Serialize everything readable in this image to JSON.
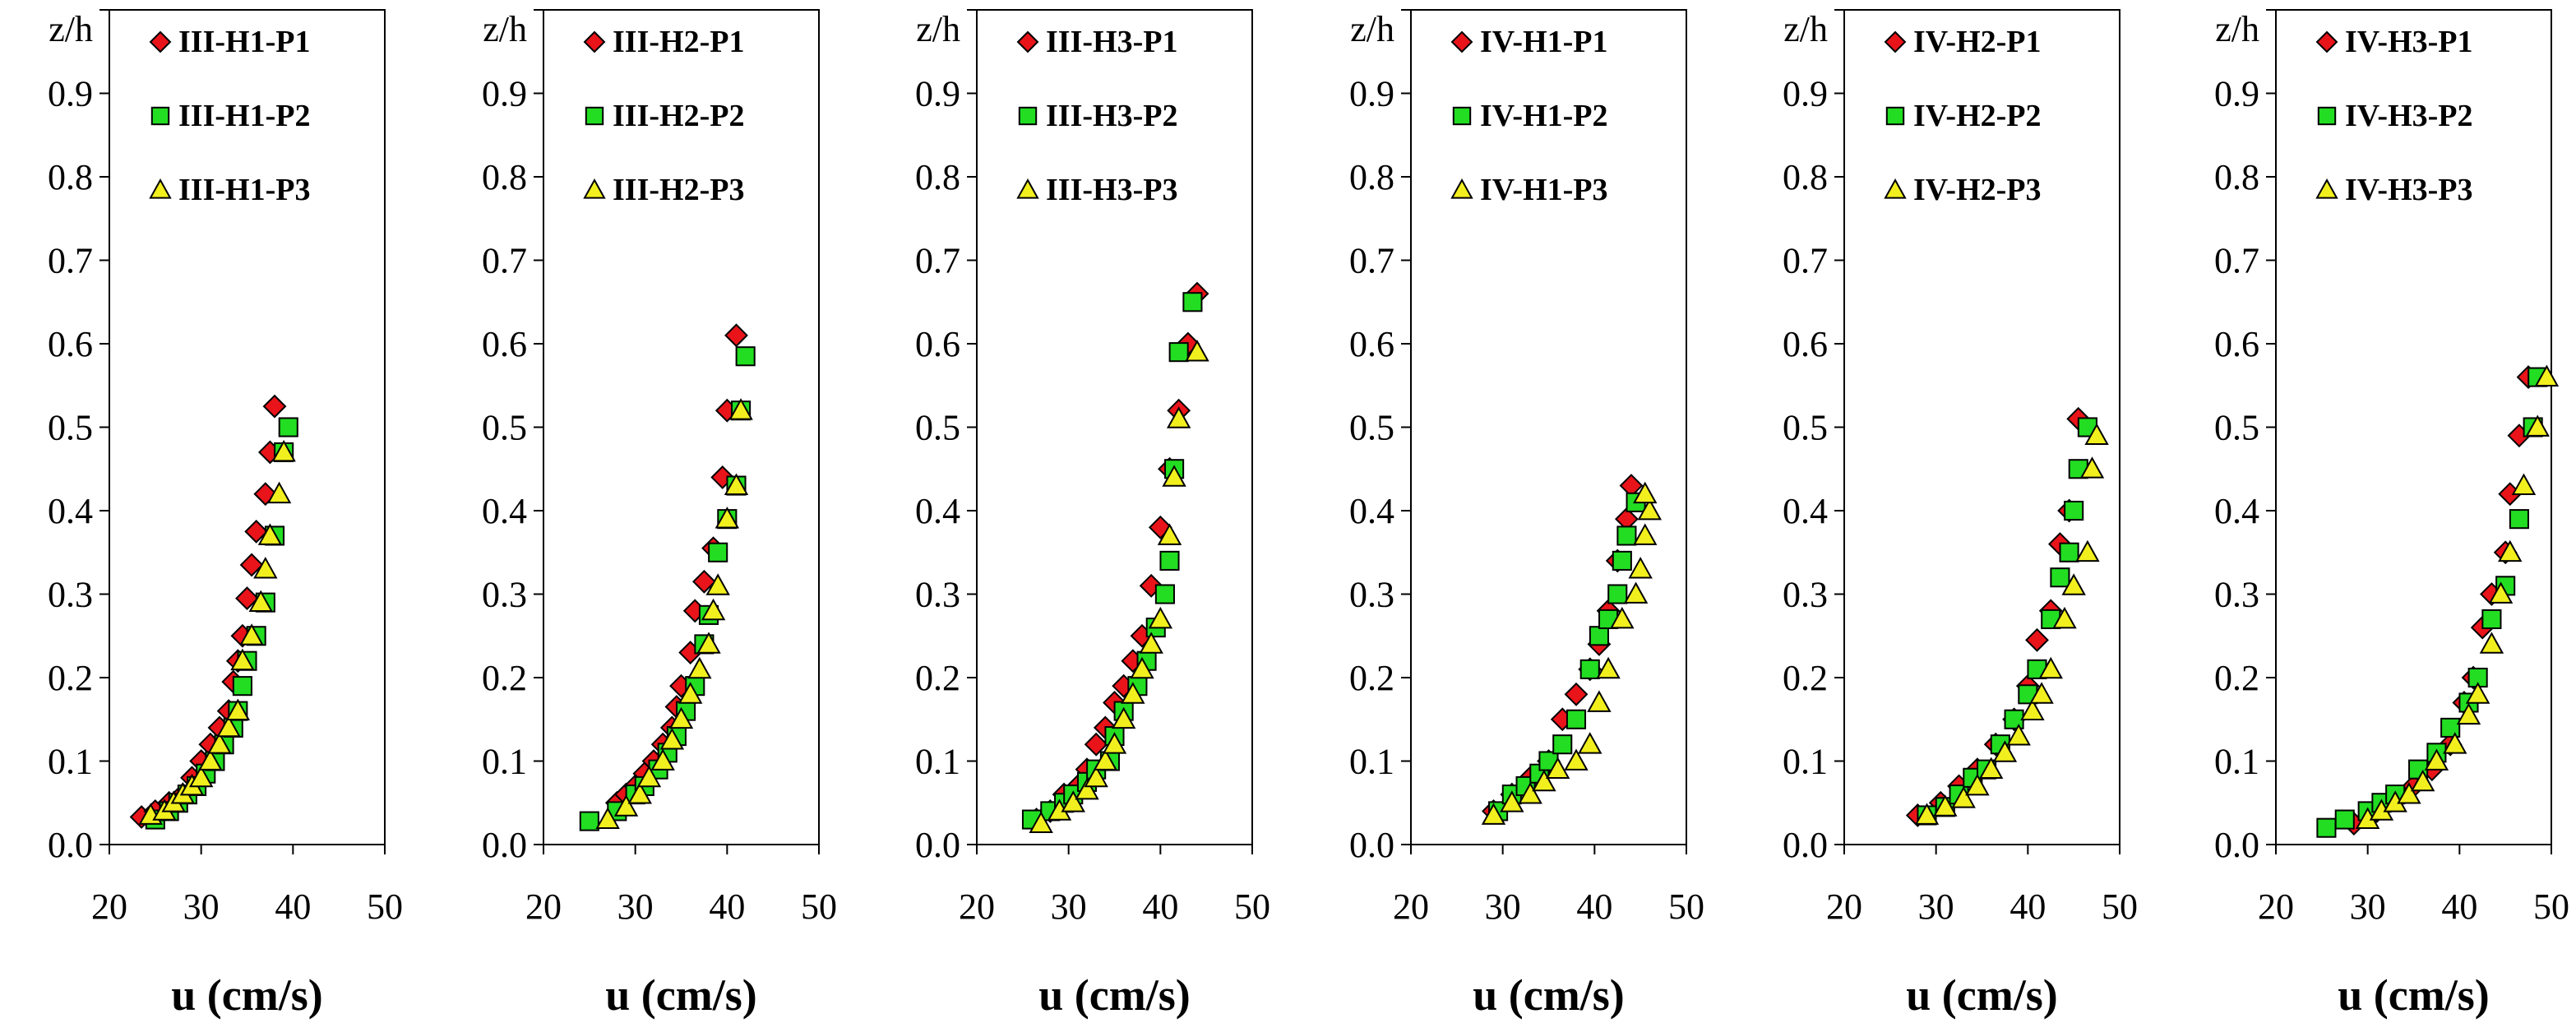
{
  "colors": {
    "P1": "#e8141a",
    "P2": "#22dd22",
    "P3": "#f2ef1e",
    "marker_stroke": "#000000",
    "axis": "#000000",
    "background": "#ffffff"
  },
  "chart_data": [
    {
      "type": "scatter",
      "xlabel": "u (cm/s)",
      "ylabel": "z/h",
      "xlim": [
        20,
        50
      ],
      "ylim": [
        0,
        1
      ],
      "xticks": [
        "20",
        "30",
        "40",
        "50"
      ],
      "yticks": [
        "0.0",
        "0.1",
        "0.2",
        "0.3",
        "0.4",
        "0.5",
        "0.6",
        "0.7",
        "0.8",
        "0.9"
      ],
      "legend_position": "top-right",
      "series": [
        {
          "name": "III-H1-P1",
          "marker": "diamond",
          "color": "#e8141a",
          "x": [
            23.5,
            25.0,
            26.5,
            28.0,
            29.0,
            30.0,
            31.0,
            32.0,
            33.0,
            33.5,
            34.0,
            34.5,
            35.0,
            35.5,
            36.0,
            37.0,
            37.5,
            38.0
          ],
          "y": [
            0.033,
            0.04,
            0.05,
            0.06,
            0.08,
            0.1,
            0.12,
            0.14,
            0.16,
            0.195,
            0.22,
            0.25,
            0.295,
            0.335,
            0.375,
            0.42,
            0.47,
            0.525
          ]
        },
        {
          "name": "III-H1-P2",
          "marker": "square",
          "color": "#22dd22",
          "x": [
            25.0,
            26.5,
            27.5,
            28.5,
            29.5,
            30.5,
            31.5,
            32.5,
            33.5,
            34.0,
            34.5,
            35.0,
            36.0,
            37.0,
            38.0,
            39.0,
            39.5
          ],
          "y": [
            0.03,
            0.04,
            0.05,
            0.06,
            0.07,
            0.085,
            0.1,
            0.12,
            0.14,
            0.16,
            0.19,
            0.22,
            0.25,
            0.29,
            0.37,
            0.47,
            0.5
          ]
        },
        {
          "name": "III-H1-P3",
          "marker": "triangle",
          "color": "#f2ef1e",
          "x": [
            24.5,
            26.0,
            27.0,
            28.0,
            29.0,
            30.0,
            31.0,
            32.0,
            33.0,
            34.0,
            34.5,
            35.5,
            36.5,
            37.0,
            37.5,
            38.5,
            39.0
          ],
          "y": [
            0.035,
            0.04,
            0.05,
            0.06,
            0.07,
            0.08,
            0.1,
            0.12,
            0.14,
            0.16,
            0.22,
            0.25,
            0.29,
            0.33,
            0.37,
            0.42,
            0.47
          ]
        }
      ]
    },
    {
      "type": "scatter",
      "xlabel": "u (cm/s)",
      "ylabel": "z/h",
      "xlim": [
        20,
        50
      ],
      "ylim": [
        0,
        1
      ],
      "xticks": [
        "20",
        "30",
        "40",
        "50"
      ],
      "yticks": [
        "0.0",
        "0.1",
        "0.2",
        "0.3",
        "0.4",
        "0.5",
        "0.6",
        "0.7",
        "0.8",
        "0.9"
      ],
      "legend_position": "top-right",
      "series": [
        {
          "name": "III-H2-P1",
          "marker": "diamond",
          "color": "#e8141a",
          "x": [
            28.0,
            29.0,
            30.0,
            31.0,
            32.0,
            33.0,
            34.0,
            34.5,
            35.0,
            36.0,
            36.5,
            37.5,
            38.5,
            39.5,
            40.0,
            41.0
          ],
          "y": [
            0.05,
            0.06,
            0.07,
            0.085,
            0.1,
            0.12,
            0.14,
            0.165,
            0.19,
            0.23,
            0.28,
            0.315,
            0.355,
            0.44,
            0.52,
            0.61
          ]
        },
        {
          "name": "III-H2-P2",
          "marker": "square",
          "color": "#22dd22",
          "x": [
            25.0,
            28.0,
            30.0,
            31.0,
            32.5,
            33.5,
            34.5,
            35.5,
            36.5,
            37.5,
            38.0,
            39.0,
            40.0,
            41.0,
            41.5,
            42.0
          ],
          "y": [
            0.028,
            0.04,
            0.06,
            0.07,
            0.09,
            0.11,
            0.13,
            0.16,
            0.19,
            0.24,
            0.275,
            0.35,
            0.39,
            0.43,
            0.52,
            0.585
          ]
        },
        {
          "name": "III-H2-P3",
          "marker": "triangle",
          "color": "#f2ef1e",
          "x": [
            27.0,
            29.0,
            30.5,
            31.5,
            33.0,
            34.0,
            35.0,
            36.0,
            37.0,
            38.0,
            38.5,
            39.0,
            40.0,
            41.0,
            41.5
          ],
          "y": [
            0.03,
            0.045,
            0.06,
            0.08,
            0.1,
            0.125,
            0.15,
            0.18,
            0.21,
            0.24,
            0.28,
            0.31,
            0.39,
            0.43,
            0.52
          ]
        }
      ]
    },
    {
      "type": "scatter",
      "xlabel": "u (cm/s)",
      "ylabel": "z/h",
      "xlim": [
        20,
        50
      ],
      "ylim": [
        0,
        1
      ],
      "xticks": [
        "20",
        "30",
        "40",
        "50"
      ],
      "yticks": [
        "0.0",
        "0.1",
        "0.2",
        "0.3",
        "0.4",
        "0.5",
        "0.6",
        "0.7",
        "0.8",
        "0.9"
      ],
      "legend_position": "top-right",
      "series": [
        {
          "name": "III-H3-P1",
          "marker": "diamond",
          "color": "#e8141a",
          "x": [
            26.5,
            28.0,
            29.5,
            31.0,
            32.0,
            33.0,
            34.0,
            35.0,
            36.0,
            37.0,
            38.0,
            39.0,
            40.0,
            41.0,
            42.0,
            43.0,
            44.0
          ],
          "y": [
            0.03,
            0.04,
            0.06,
            0.07,
            0.09,
            0.12,
            0.14,
            0.17,
            0.19,
            0.22,
            0.25,
            0.31,
            0.38,
            0.45,
            0.52,
            0.6,
            0.66
          ]
        },
        {
          "name": "III-H3-P2",
          "marker": "square",
          "color": "#22dd22",
          "x": [
            26.0,
            28.0,
            29.5,
            30.5,
            32.0,
            33.0,
            34.5,
            35.0,
            36.0,
            37.5,
            38.5,
            39.5,
            40.5,
            41.0,
            41.5,
            42.0,
            43.5
          ],
          "y": [
            0.03,
            0.04,
            0.05,
            0.06,
            0.075,
            0.09,
            0.1,
            0.13,
            0.16,
            0.19,
            0.22,
            0.26,
            0.3,
            0.34,
            0.45,
            0.59,
            0.65
          ]
        },
        {
          "name": "III-H3-P3",
          "marker": "triangle",
          "color": "#f2ef1e",
          "x": [
            27.0,
            29.0,
            30.5,
            32.0,
            33.0,
            34.0,
            35.0,
            36.0,
            37.0,
            38.0,
            39.0,
            40.0,
            41.0,
            41.5,
            42.0,
            44.0
          ],
          "y": [
            0.025,
            0.04,
            0.05,
            0.065,
            0.08,
            0.1,
            0.12,
            0.15,
            0.18,
            0.21,
            0.24,
            0.27,
            0.37,
            0.44,
            0.51,
            0.59
          ]
        }
      ]
    },
    {
      "type": "scatter",
      "xlabel": "u (cm/s)",
      "ylabel": "z/h",
      "xlim": [
        20,
        50
      ],
      "ylim": [
        0,
        1
      ],
      "xticks": [
        "20",
        "30",
        "40",
        "50"
      ],
      "yticks": [
        "0.0",
        "0.1",
        "0.2",
        "0.3",
        "0.4",
        "0.5",
        "0.6",
        "0.7",
        "0.8",
        "0.9"
      ],
      "legend_position": "top-right",
      "series": [
        {
          "name": "IV-H1-P1",
          "marker": "diamond",
          "color": "#e8141a",
          "x": [
            29.0,
            31.0,
            33.0,
            35.0,
            36.5,
            38.0,
            39.5,
            40.5,
            41.5,
            42.5,
            43.5,
            44.0
          ],
          "y": [
            0.04,
            0.06,
            0.08,
            0.1,
            0.15,
            0.18,
            0.21,
            0.24,
            0.28,
            0.34,
            0.39,
            0.43
          ]
        },
        {
          "name": "IV-H1-P2",
          "marker": "square",
          "color": "#22dd22",
          "x": [
            29.5,
            31.0,
            32.5,
            34.0,
            35.0,
            36.5,
            38.0,
            39.5,
            40.5,
            41.5,
            42.5,
            43.0,
            43.5,
            44.5
          ],
          "y": [
            0.04,
            0.06,
            0.07,
            0.085,
            0.1,
            0.12,
            0.15,
            0.21,
            0.25,
            0.27,
            0.3,
            0.34,
            0.37,
            0.41
          ]
        },
        {
          "name": "IV-H1-P3",
          "marker": "triangle",
          "color": "#f2ef1e",
          "x": [
            29.0,
            31.0,
            33.0,
            34.5,
            36.0,
            38.0,
            39.5,
            40.5,
            41.5,
            43.0,
            44.5,
            45.0,
            45.5,
            46.0,
            45.5
          ],
          "y": [
            0.035,
            0.05,
            0.06,
            0.075,
            0.09,
            0.1,
            0.12,
            0.17,
            0.21,
            0.27,
            0.3,
            0.33,
            0.37,
            0.4,
            0.42
          ]
        }
      ]
    },
    {
      "type": "scatter",
      "xlabel": "u (cm/s)",
      "ylabel": "z/h",
      "xlim": [
        20,
        50
      ],
      "ylim": [
        0,
        1
      ],
      "xticks": [
        "20",
        "30",
        "40",
        "50"
      ],
      "yticks": [
        "0.0",
        "0.1",
        "0.2",
        "0.3",
        "0.4",
        "0.5",
        "0.6",
        "0.7",
        "0.8",
        "0.9"
      ],
      "legend_position": "top-right",
      "series": [
        {
          "name": "IV-H2-P1",
          "marker": "diamond",
          "color": "#e8141a",
          "x": [
            28.0,
            30.5,
            32.5,
            34.5,
            36.5,
            38.5,
            40.0,
            41.0,
            42.5,
            43.5,
            44.5,
            45.5
          ],
          "y": [
            0.035,
            0.05,
            0.07,
            0.09,
            0.12,
            0.15,
            0.19,
            0.245,
            0.28,
            0.36,
            0.4,
            0.51
          ]
        },
        {
          "name": "IV-H2-P2",
          "marker": "square",
          "color": "#22dd22",
          "x": [
            29.0,
            31.0,
            32.5,
            34.0,
            35.5,
            37.0,
            38.5,
            40.0,
            41.0,
            42.5,
            43.5,
            44.5,
            45.0,
            45.5,
            46.5
          ],
          "y": [
            0.035,
            0.045,
            0.06,
            0.08,
            0.09,
            0.12,
            0.15,
            0.18,
            0.21,
            0.27,
            0.32,
            0.35,
            0.4,
            0.45,
            0.5
          ]
        },
        {
          "name": "IV-H2-P3",
          "marker": "triangle",
          "color": "#f2ef1e",
          "x": [
            29.0,
            31.0,
            33.0,
            34.5,
            36.0,
            37.5,
            39.0,
            40.5,
            41.5,
            42.5,
            44.0,
            45.0,
            46.5,
            47.0,
            47.5
          ],
          "y": [
            0.035,
            0.045,
            0.055,
            0.07,
            0.09,
            0.11,
            0.13,
            0.16,
            0.18,
            0.21,
            0.27,
            0.31,
            0.35,
            0.45,
            0.49
          ]
        }
      ]
    },
    {
      "type": "scatter",
      "xlabel": "u (cm/s)",
      "ylabel": "z/h",
      "xlim": [
        20,
        50
      ],
      "ylim": [
        0,
        1
      ],
      "xticks": [
        "20",
        "30",
        "40",
        "50"
      ],
      "yticks": [
        "0.0",
        "0.1",
        "0.2",
        "0.3",
        "0.4",
        "0.5",
        "0.6",
        "0.7",
        "0.8",
        "0.9"
      ],
      "legend_position": "top-right",
      "series": [
        {
          "name": "IV-H3-P1",
          "marker": "diamond",
          "color": "#e8141a",
          "x": [
            28.5,
            31.0,
            33.0,
            35.0,
            37.0,
            39.0,
            40.5,
            41.5,
            42.5,
            43.5,
            45.0,
            45.5,
            46.5,
            47.5
          ],
          "y": [
            0.025,
            0.04,
            0.055,
            0.07,
            0.09,
            0.12,
            0.17,
            0.2,
            0.26,
            0.3,
            0.35,
            0.42,
            0.49,
            0.56
          ]
        },
        {
          "name": "IV-H3-P2",
          "marker": "square",
          "color": "#22dd22",
          "x": [
            25.5,
            27.5,
            30.0,
            31.5,
            33.0,
            35.5,
            37.5,
            39.0,
            41.0,
            42.0,
            43.5,
            45.0,
            46.5,
            48.0,
            48.5
          ],
          "y": [
            0.02,
            0.03,
            0.04,
            0.05,
            0.06,
            0.09,
            0.11,
            0.14,
            0.17,
            0.2,
            0.27,
            0.31,
            0.39,
            0.5,
            0.56
          ]
        },
        {
          "name": "IV-H3-P3",
          "marker": "triangle",
          "color": "#f2ef1e",
          "x": [
            30.0,
            31.5,
            33.0,
            34.5,
            36.0,
            37.5,
            39.5,
            41.0,
            42.0,
            43.5,
            44.5,
            45.5,
            47.0,
            48.5,
            49.5
          ],
          "y": [
            0.03,
            0.04,
            0.05,
            0.06,
            0.075,
            0.1,
            0.12,
            0.155,
            0.18,
            0.24,
            0.3,
            0.35,
            0.43,
            0.5,
            0.56
          ]
        }
      ]
    }
  ]
}
